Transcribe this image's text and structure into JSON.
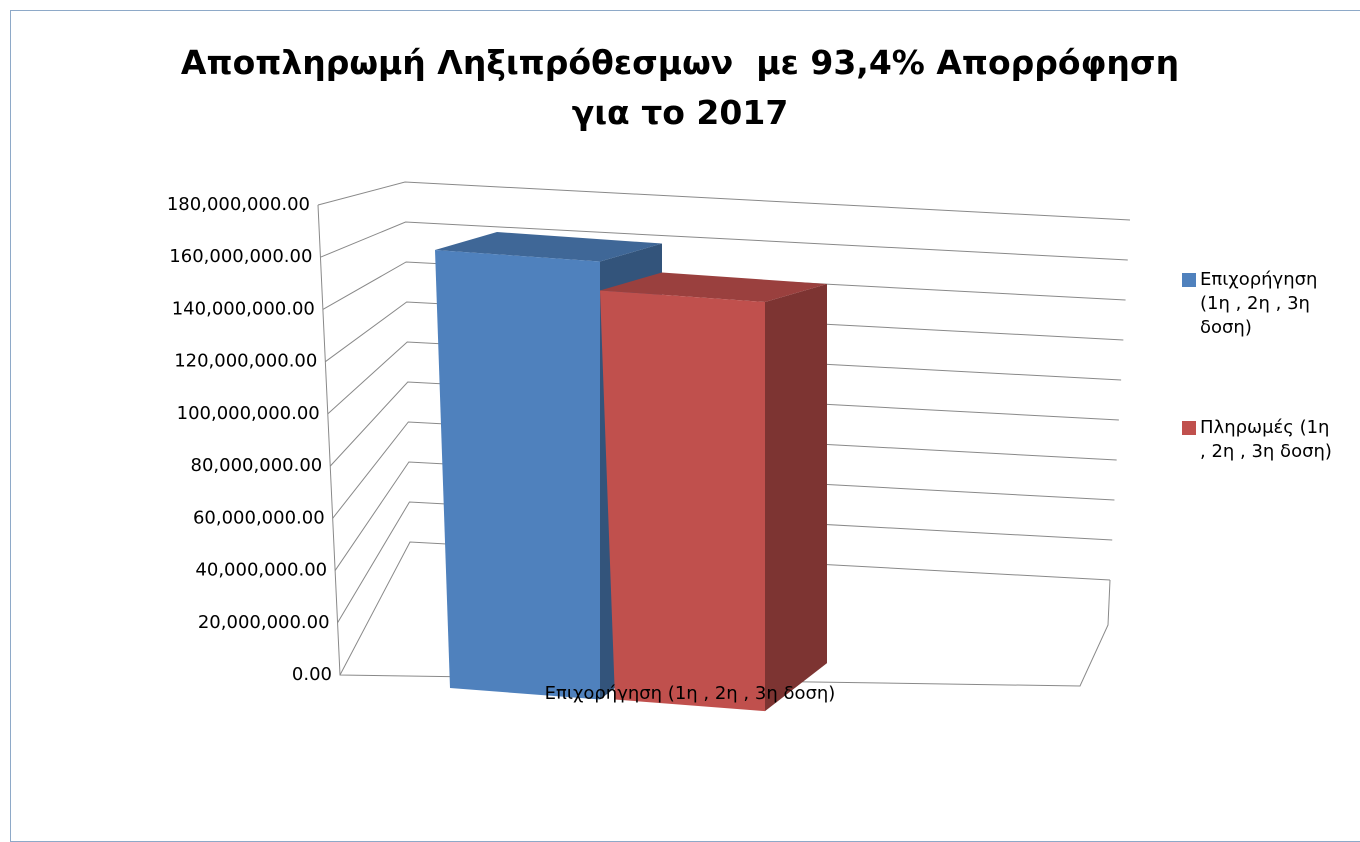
{
  "chart_data": {
    "type": "bar3d",
    "title": "Αποπληρωμή Ληξιπρόθεσμων  με 93,4% Απορρόφηση για το 2017",
    "categories": [
      "Επιχορήγηση (1η , 2η ,  3η δοση)"
    ],
    "series": [
      {
        "name": "Επιχορήγηση (1η , 2η ,  3η δοση)",
        "color": "#4f81bd",
        "values": [
          155000000
        ]
      },
      {
        "name": "Πληρωμές (1η , 2η ,  3η δοση)",
        "color": "#c0504d",
        "values": [
          144770000
        ]
      }
    ],
    "ylim": [
      0,
      180000000
    ],
    "yticks": [
      {
        "value": 0,
        "label": "0.00"
      },
      {
        "value": 20000000,
        "label": "20,000,000.00"
      },
      {
        "value": 40000000,
        "label": "40,000,000.00"
      },
      {
        "value": 60000000,
        "label": "60,000,000.00"
      },
      {
        "value": 80000000,
        "label": "80,000,000.00"
      },
      {
        "value": 100000000,
        "label": "100,000,000.00"
      },
      {
        "value": 120000000,
        "label": "120,000,000.00"
      },
      {
        "value": 140000000,
        "label": "140,000,000.00"
      },
      {
        "value": 160000000,
        "label": "160,000,000.00"
      },
      {
        "value": 180000000,
        "label": "180,000,000.00"
      }
    ],
    "grid": true,
    "legend": "right"
  }
}
